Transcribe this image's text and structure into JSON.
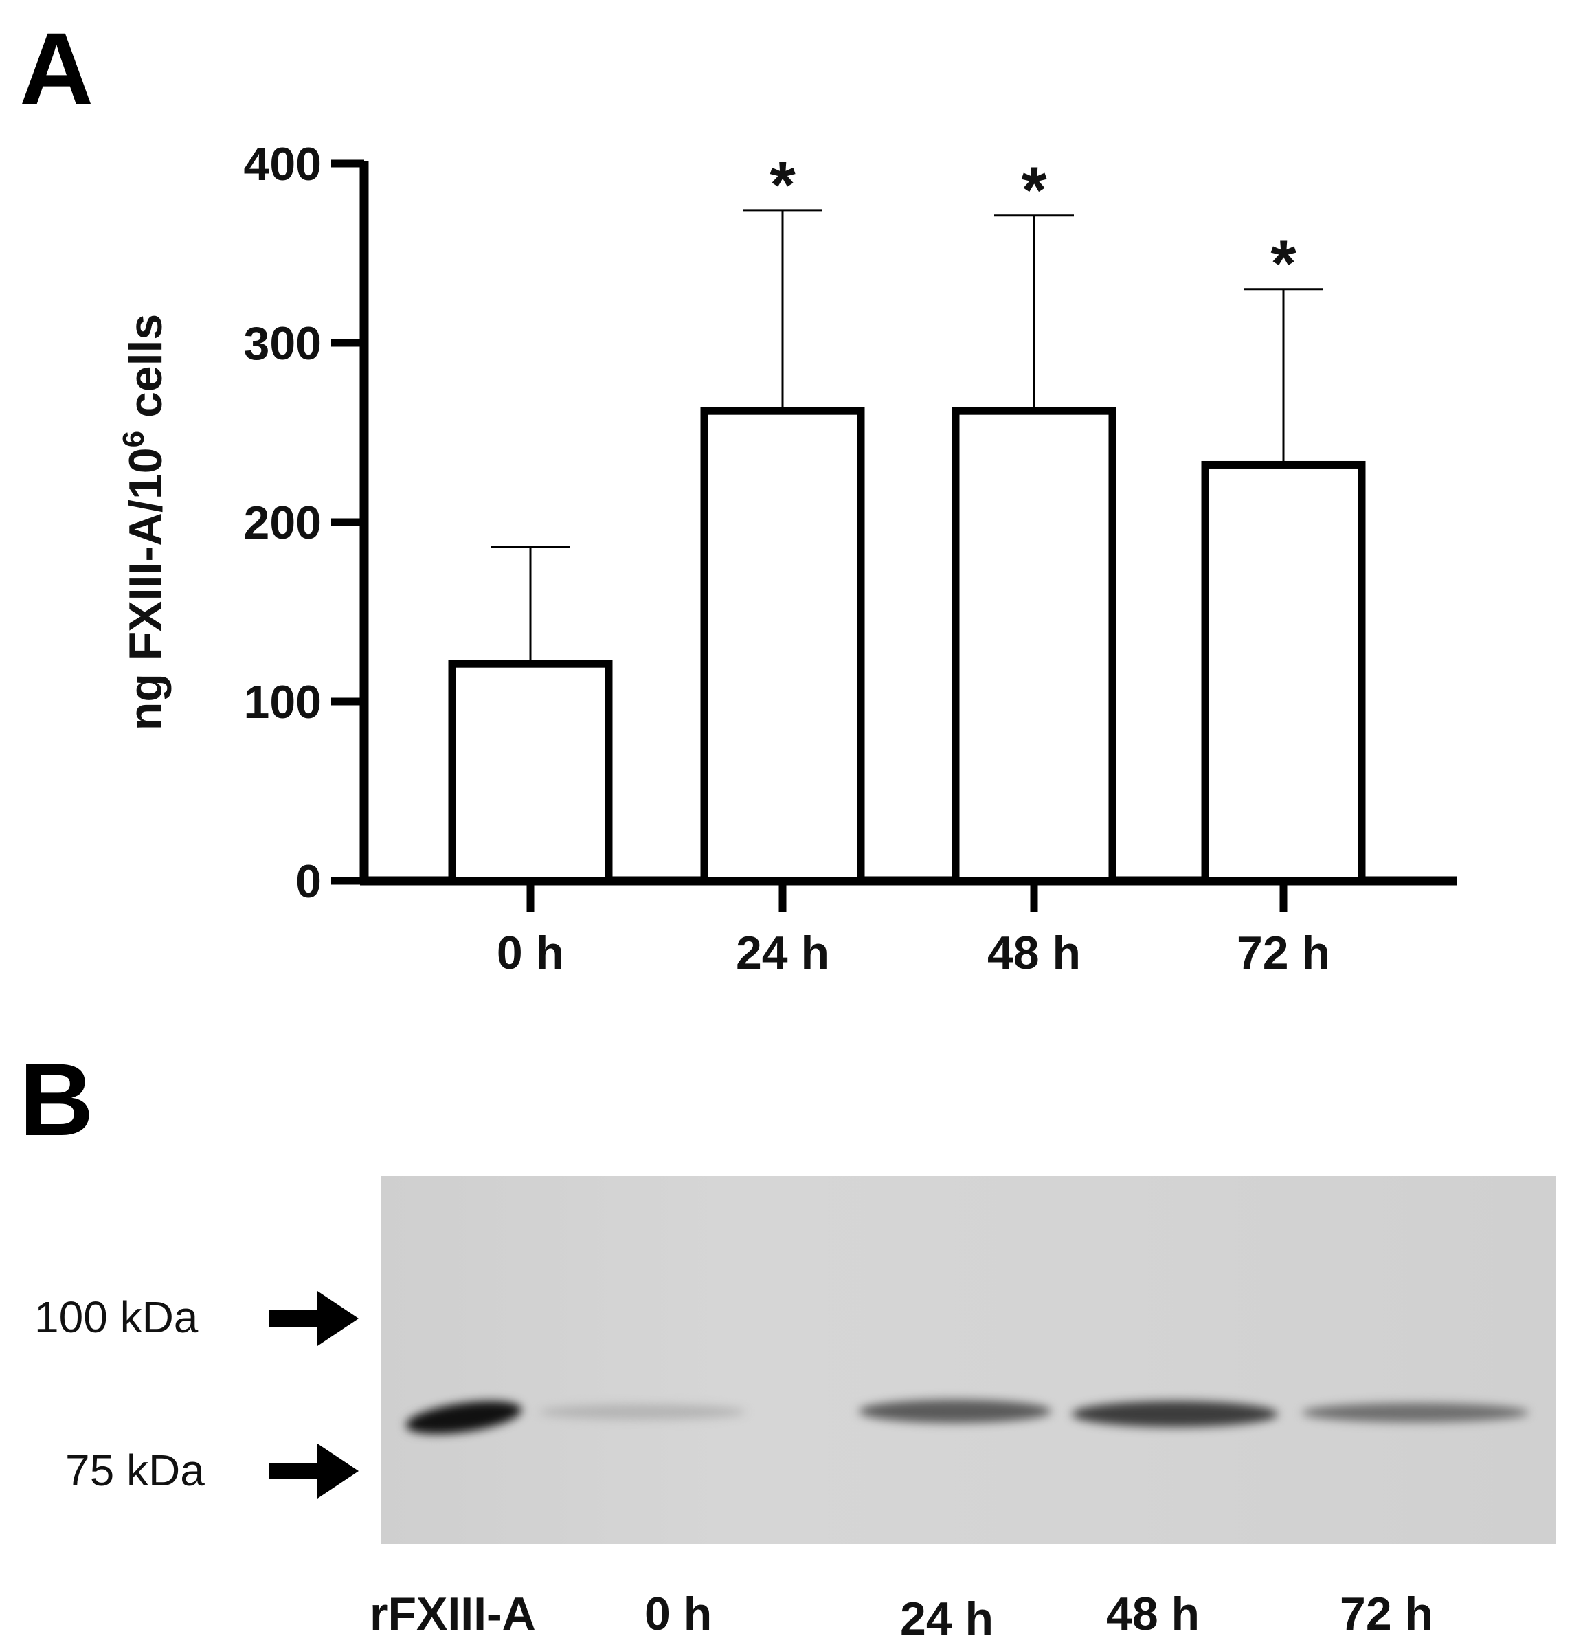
{
  "panel_a": {
    "letter": "A",
    "ylabel_main": "ng FXIII-A/10",
    "ylabel_sup": "6",
    "ylabel_tail": " cells"
  },
  "panel_b": {
    "letter": "B",
    "markers": [
      {
        "label": "100 kDa"
      },
      {
        "label": "75 kDa"
      }
    ],
    "lanes": [
      "rFXIII-A",
      "0 h",
      "24 h",
      "48 h",
      "72 h"
    ]
  },
  "chart_data": {
    "type": "bar",
    "categories": [
      "0 h",
      "24 h",
      "48 h",
      "72 h"
    ],
    "values": [
      121,
      262,
      262,
      232
    ],
    "error_upper": [
      186,
      374,
      371,
      330
    ],
    "significance": [
      "",
      "*",
      "*",
      "*"
    ],
    "ylabel": "ng FXIII-A/10⁶ cells",
    "ylim": [
      0,
      400
    ],
    "yticks": [
      0,
      100,
      200,
      300,
      400
    ],
    "bar_fill": "#ffffff",
    "bar_stroke": "#000000",
    "grid": false
  },
  "colors": {
    "ink": "#000000",
    "blot_bg": "#d2d2d2",
    "band_dark": "#151515",
    "band_mid": "#5a5a5a"
  }
}
